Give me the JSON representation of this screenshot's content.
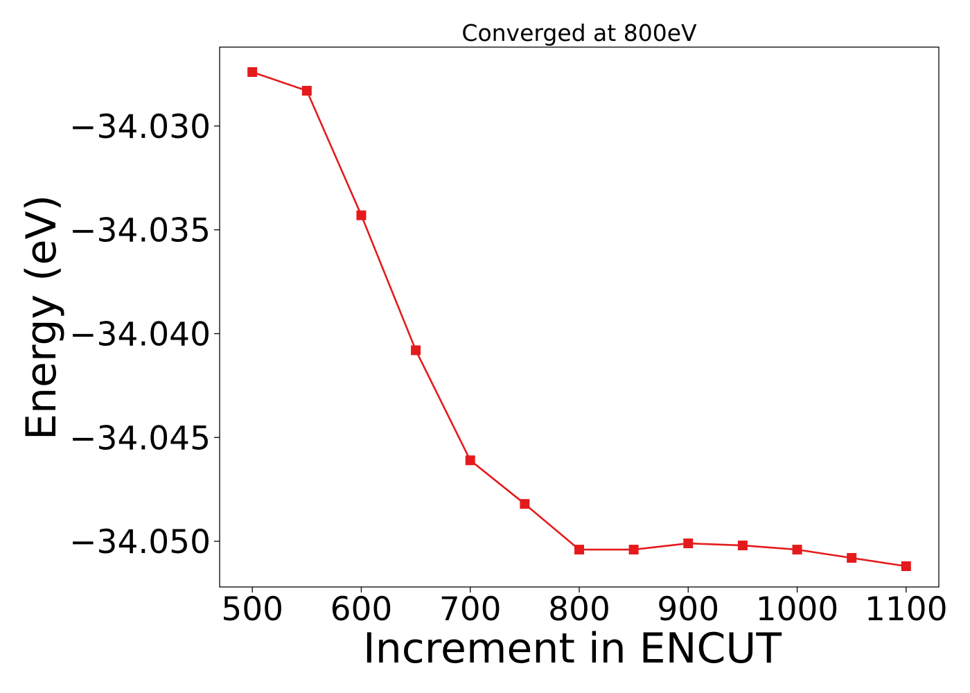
{
  "chart_data": {
    "type": "line",
    "title": "Converged at 800eV",
    "xlabel": "Increment in ENCUT",
    "ylabel": "Energy (eV)",
    "xlim": [
      470,
      1130
    ],
    "ylim": [
      -34.0522,
      -34.0262
    ],
    "xticks": [
      500,
      600,
      700,
      800,
      900,
      1000,
      1100
    ],
    "xtick_labels": [
      "500",
      "600",
      "700",
      "800",
      "900",
      "1000",
      "1100"
    ],
    "yticks": [
      -34.03,
      -34.035,
      -34.04,
      -34.045,
      -34.05
    ],
    "ytick_labels": [
      "−34.030",
      "−34.035",
      "−34.040",
      "−34.045",
      "−34.050"
    ],
    "grid": false,
    "series": [
      {
        "color": "#e41a1c",
        "marker": "square",
        "x": [
          500,
          550,
          600,
          650,
          700,
          750,
          800,
          850,
          900,
          950,
          1000,
          1050,
          1100
        ],
        "y": [
          -34.0274,
          -34.0283,
          -34.0343,
          -34.0408,
          -34.0461,
          -34.0482,
          -34.0504,
          -34.0504,
          -34.0501,
          -34.0502,
          -34.0504,
          -34.0508,
          -34.0512
        ]
      }
    ]
  }
}
